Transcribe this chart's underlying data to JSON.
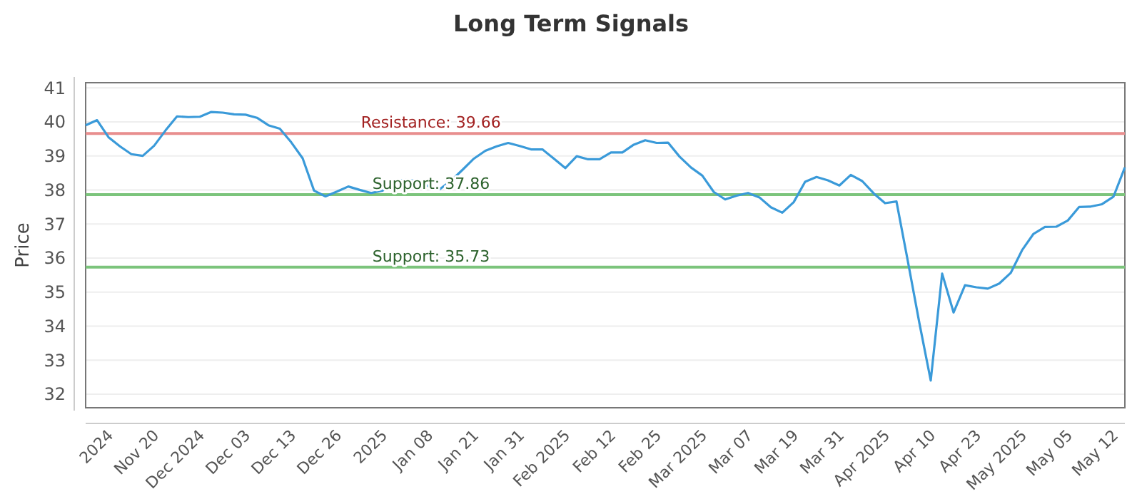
{
  "chart_data": {
    "type": "line",
    "title": "Long Term Signals",
    "ylabel": "Price",
    "categories": [
      null,
      null,
      "2024",
      null,
      null,
      null,
      "Nov 20",
      null,
      null,
      null,
      "Dec 2024",
      null,
      null,
      null,
      "Dec 03",
      null,
      null,
      null,
      "Dec 13",
      null,
      null,
      null,
      "Dec 26",
      null,
      null,
      null,
      "2025",
      null,
      null,
      null,
      "Jan 08",
      null,
      null,
      null,
      "Jan 21",
      null,
      null,
      null,
      "Jan 31",
      null,
      null,
      null,
      "Feb 2025",
      null,
      null,
      null,
      "Feb 12",
      null,
      null,
      null,
      "Feb 25",
      null,
      null,
      null,
      "Mar 2025",
      null,
      null,
      null,
      "Mar 07",
      null,
      null,
      null,
      "Mar 19",
      null,
      null,
      null,
      "Mar 31",
      null,
      null,
      null,
      "Apr 2025",
      null,
      null,
      null,
      "Apr 10",
      null,
      null,
      null,
      "Apr 23",
      null,
      null,
      null,
      "May 2025",
      null,
      null,
      null,
      "May 05",
      null,
      null,
      null,
      "May 12",
      null
    ],
    "series": [
      {
        "color": "#3a9ad9",
        "values": [
          39.9,
          40.05,
          39.55,
          39.28,
          39.05,
          39.0,
          39.3,
          39.75,
          40.16,
          40.14,
          40.15,
          40.29,
          40.27,
          40.22,
          40.21,
          40.12,
          39.9,
          39.8,
          39.4,
          38.93,
          37.98,
          37.81,
          37.95,
          38.1,
          38.0,
          37.91,
          37.98,
          38.24,
          38.3,
          38.26,
          38.11,
          38.02,
          38.27,
          38.59,
          38.92,
          39.15,
          39.28,
          39.38,
          39.29,
          39.19,
          39.19,
          38.92,
          38.64,
          38.99,
          38.9,
          38.9,
          39.1,
          39.1,
          39.33,
          39.46,
          39.38,
          39.39,
          38.98,
          38.66,
          38.42,
          37.94,
          37.72,
          37.83,
          37.91,
          37.78,
          37.49,
          37.33,
          37.64,
          38.24,
          38.38,
          38.28,
          38.13,
          38.44,
          38.26,
          37.9,
          37.61,
          37.66,
          35.9,
          34.1,
          32.4,
          35.54,
          34.4,
          35.2,
          35.14,
          35.1,
          35.25,
          35.56,
          36.23,
          36.71,
          36.91,
          36.92,
          37.1,
          37.5,
          37.51,
          37.58,
          37.8,
          38.66
        ]
      }
    ],
    "ylim": [
      31.6,
      41.15
    ],
    "yticks": [
      32,
      33,
      34,
      35,
      36,
      37,
      38,
      39,
      40,
      41
    ],
    "grid": "y",
    "marker": "none",
    "line_style": "solid",
    "ref_lines": [
      {
        "axis": "y",
        "value": 39.66,
        "label": "Resistance: 39.66",
        "color": "#e88e8e"
      },
      {
        "axis": "y",
        "value": 37.86,
        "label": "Support: 37.86",
        "color": "#7cc47c"
      },
      {
        "axis": "y",
        "value": 35.73,
        "label": "Support: 35.73",
        "color": "#7cc47c"
      }
    ]
  }
}
